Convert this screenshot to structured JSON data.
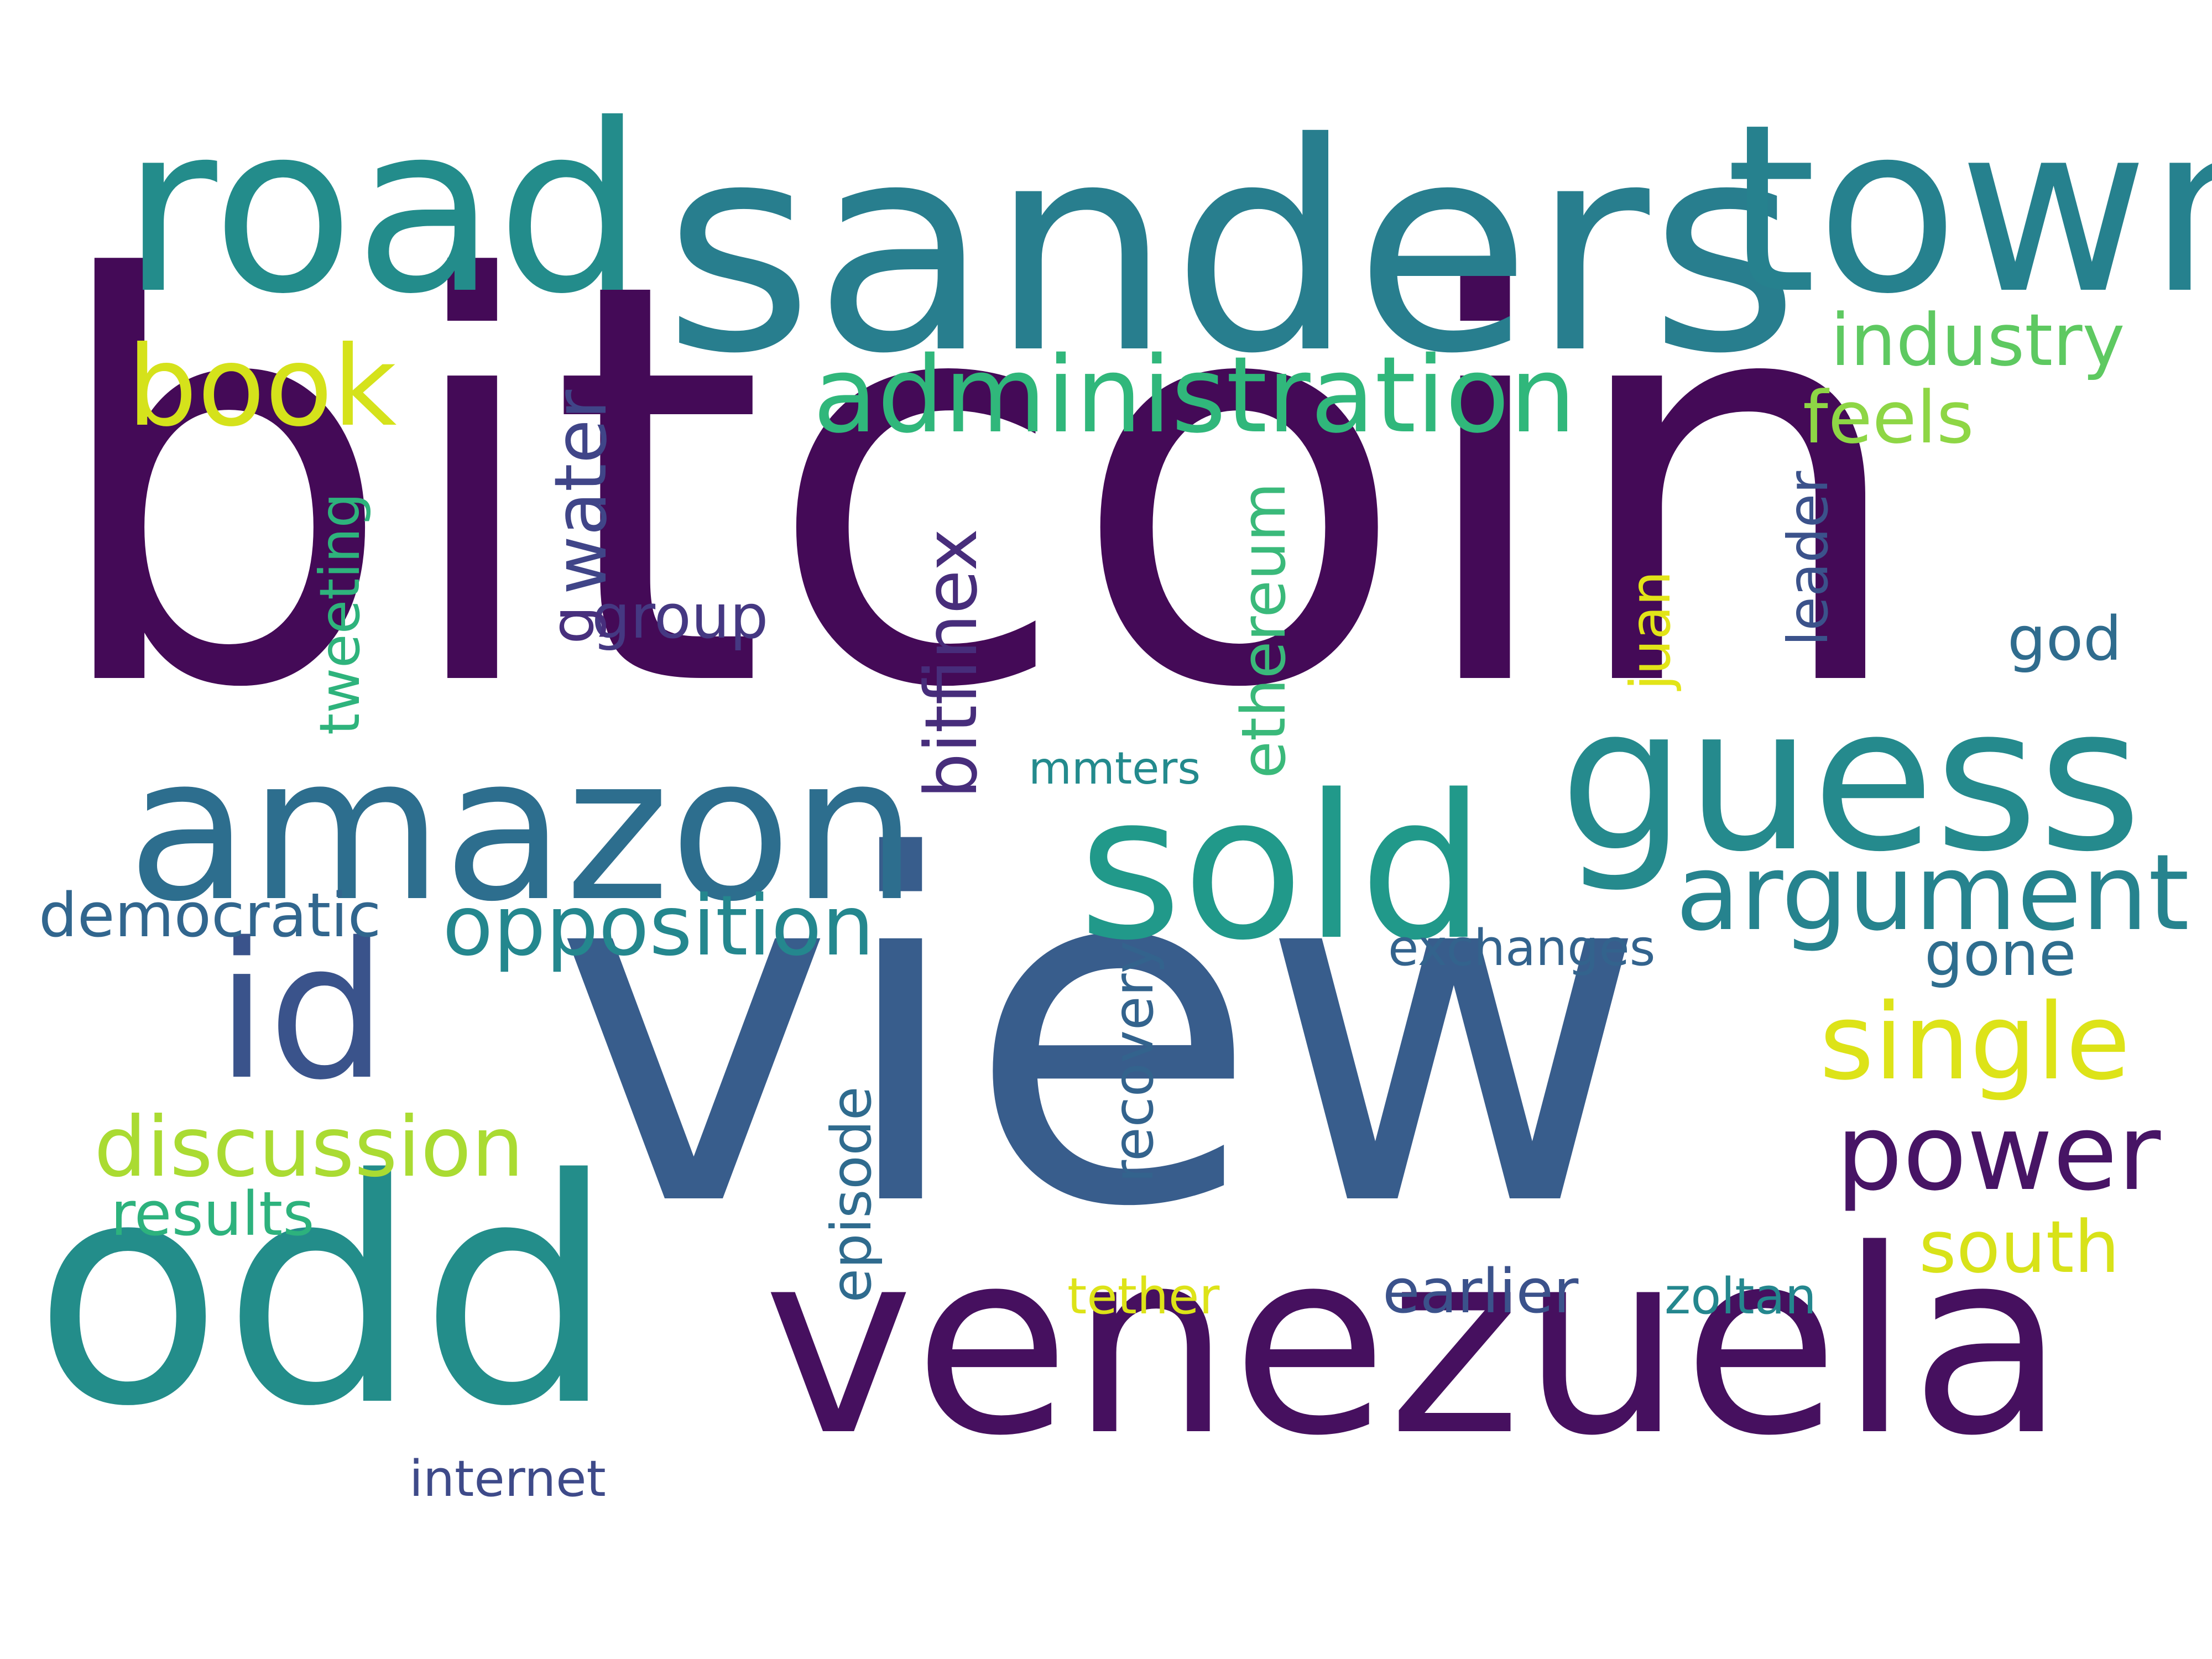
{
  "words": {
    "bitcoin": {
      "text": "bitcoin",
      "color": "#440a57"
    },
    "view": {
      "text": "view",
      "color": "#385d8c"
    },
    "sanders": {
      "text": "sanders",
      "color": "#287e8e"
    },
    "town": {
      "text": "town",
      "color": "#26818e"
    },
    "road": {
      "text": "road",
      "color": "#238c8b"
    },
    "odd": {
      "text": "odd",
      "color": "#238d8a"
    },
    "venezuela": {
      "text": "venezuela",
      "color": "#46105f"
    },
    "amazon": {
      "text": "amazon",
      "color": "#2d6e8e"
    },
    "sold": {
      "text": "sold",
      "color": "#21998a"
    },
    "guess": {
      "text": "guess",
      "color": "#258a8d"
    },
    "administration": {
      "text": "administration",
      "color": "#30b77b"
    },
    "book": {
      "text": "book",
      "color": "#d5e21b"
    },
    "id": {
      "text": "id",
      "color": "#3a538b"
    },
    "argument": {
      "text": "argument",
      "color": "#26838e"
    },
    "single": {
      "text": "single",
      "color": "#dde318"
    },
    "power": {
      "text": "power",
      "color": "#471465"
    },
    "opposition": {
      "text": "opposition",
      "color": "#24878e"
    },
    "discussion": {
      "text": "discussion",
      "color": "#aadb32"
    },
    "industry": {
      "text": "industry",
      "color": "#5ec961"
    },
    "feels": {
      "text": "feels",
      "color": "#8ed645"
    },
    "south": {
      "text": "south",
      "color": "#d8e219"
    },
    "water": {
      "text": "water",
      "color": "#404588"
    },
    "bitfinex": {
      "text": "bitfinex",
      "color": "#472d7b"
    },
    "ethereum": {
      "text": "ethereum",
      "color": "#3ab97a"
    },
    "tweeting": {
      "text": "tweeting",
      "color": "#2eb37c"
    },
    "recovery": {
      "text": "recovery",
      "color": "#33638d"
    },
    "episode": {
      "text": "episode",
      "color": "#2f6b8e"
    },
    "leader": {
      "text": "leader",
      "color": "#3b528b"
    },
    "juan": {
      "text": "juan",
      "color": "#e2e418"
    },
    "g": {
      "text": "g",
      "color": "#472f7d"
    },
    "group": {
      "text": "group",
      "color": "#453882"
    },
    "god": {
      "text": "god",
      "color": "#2f6c8e"
    },
    "democratic": {
      "text": "democratic",
      "color": "#31668e"
    },
    "results": {
      "text": "results",
      "color": "#2db27d"
    },
    "mmters": {
      "text": "mmters",
      "color": "#238a8d"
    },
    "exchanges": {
      "text": "exchanges",
      "color": "#33638d"
    },
    "gone": {
      "text": "gone",
      "color": "#2e6d8e"
    },
    "earlier": {
      "text": "earlier",
      "color": "#3b528b"
    },
    "zoltan": {
      "text": "zoltan",
      "color": "#24878e"
    },
    "tether": {
      "text": "tether",
      "color": "#dde318"
    },
    "internet": {
      "text": "internet",
      "color": "#3e4a89"
    }
  }
}
